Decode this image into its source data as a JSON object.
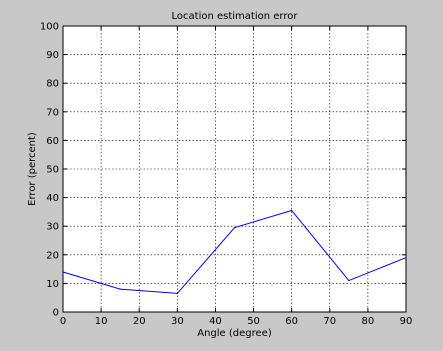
{
  "chart_data": {
    "type": "line",
    "title": "Location estimation error",
    "xlabel": "Angle (degree)",
    "ylabel": "Error (percent)",
    "xlim": [
      0,
      90
    ],
    "ylim": [
      0,
      100
    ],
    "xticks": [
      0,
      10,
      20,
      30,
      40,
      50,
      60,
      70,
      80,
      90
    ],
    "yticks": [
      0,
      10,
      20,
      30,
      40,
      50,
      60,
      70,
      80,
      90,
      100
    ],
    "grid": true,
    "series": [
      {
        "color": "#0000ff",
        "x": [
          0,
          15,
          30,
          45,
          60,
          75,
          90
        ],
        "y": [
          14,
          8,
          6.5,
          29.5,
          35.5,
          11,
          19
        ]
      }
    ]
  }
}
